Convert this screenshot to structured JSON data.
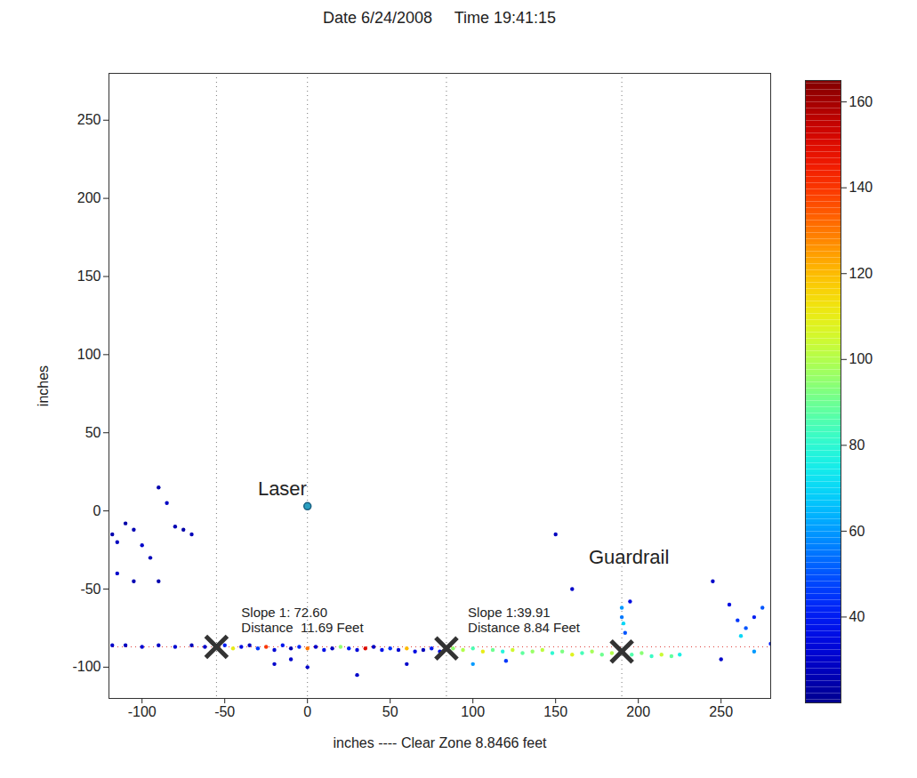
{
  "chart_data": {
    "type": "scatter",
    "title": "Date 6/24/2008     Time 19:41:15",
    "x_label": "inches ---- Clear Zone 8.8466 feet",
    "y_label": "inches",
    "xlim": [
      -120,
      280
    ],
    "ylim": [
      -120,
      280
    ],
    "xticks": [
      -100,
      -50,
      0,
      50,
      100,
      150,
      200,
      250
    ],
    "yticks": [
      -100,
      -50,
      0,
      50,
      100,
      150,
      200,
      250
    ],
    "grid": false,
    "points": {
      "x": [
        -118,
        -115,
        -110,
        -105,
        -100,
        -95,
        -90,
        -85,
        -80,
        -75,
        -70,
        -90,
        -115,
        -105,
        -118,
        -110,
        -100,
        -90,
        -80,
        -70,
        -62,
        -55,
        -50,
        -45,
        -40,
        -35,
        -30,
        -25,
        -20,
        -15,
        -10,
        -5,
        0,
        5,
        10,
        15,
        20,
        25,
        30,
        35,
        40,
        45,
        50,
        55,
        60,
        65,
        70,
        75,
        80,
        88,
        94,
        100,
        106,
        112,
        118,
        124,
        130,
        136,
        142,
        148,
        154,
        160,
        166,
        172,
        178,
        184,
        196,
        202,
        208,
        214,
        220,
        225,
        190,
        190,
        191,
        192,
        195,
        160,
        245,
        150,
        255,
        260,
        265,
        270,
        275,
        280,
        270,
        262,
        250,
        -20,
        0,
        30,
        60,
        -10,
        100,
        120
      ],
      "y": [
        -15,
        -20,
        -8,
        -12,
        -22,
        -30,
        -45,
        5,
        -10,
        -12,
        -15,
        15,
        -40,
        -45,
        -86,
        -86,
        -87,
        -86,
        -87,
        -86,
        -87,
        -87,
        -86,
        -88,
        -87,
        -86,
        -88,
        -87,
        -89,
        -86,
        -88,
        -87,
        -88,
        -87,
        -89,
        -88,
        -87,
        -88,
        -89,
        -88,
        -87,
        -89,
        -88,
        -89,
        -88,
        -90,
        -89,
        -88,
        -90,
        -88,
        -89,
        -88,
        -90,
        -89,
        -90,
        -89,
        -91,
        -90,
        -89,
        -91,
        -90,
        -92,
        -91,
        -90,
        -92,
        -91,
        -92,
        -91,
        -93,
        -92,
        -93,
        -92,
        -62,
        -68,
        -72,
        -78,
        -58,
        -50,
        -45,
        -15,
        -60,
        -70,
        -75,
        -68,
        -62,
        -85,
        -90,
        -80,
        -95,
        -98,
        -100,
        -105,
        -98,
        -95,
        -98,
        -96
      ],
      "values": [
        25,
        28,
        24,
        26,
        30,
        27,
        25,
        29,
        26,
        24,
        27,
        25,
        30,
        26,
        30,
        28,
        32,
        29,
        31,
        27,
        30,
        30,
        40,
        110,
        35,
        28,
        45,
        140,
        32,
        38,
        26,
        42,
        130,
        30,
        36,
        28,
        95,
        40,
        33,
        150,
        29,
        37,
        44,
        31,
        120,
        35,
        27,
        39,
        34,
        95,
        100,
        85,
        110,
        90,
        78,
        105,
        88,
        96,
        102,
        80,
        92,
        108,
        84,
        98,
        90,
        100,
        86,
        94,
        82,
        104,
        88,
        76,
        60,
        55,
        70,
        50,
        35,
        30,
        30,
        28,
        35,
        45,
        50,
        40,
        50,
        40,
        60,
        70,
        30,
        30,
        30,
        30,
        30,
        30,
        60,
        45
      ]
    },
    "laser": {
      "x": 0,
      "y": 3
    },
    "breakpoints": {
      "x": [
        -55,
        84,
        190
      ],
      "y": [
        -87,
        -88,
        -90
      ]
    },
    "vlines": [
      -55,
      0,
      84,
      190
    ],
    "hline": -87,
    "annotations": [
      {
        "text": "Laser",
        "x": -30,
        "y": 14
      },
      {
        "text": "Guardrail",
        "x": 170,
        "y": -30
      },
      {
        "text": "Slope 1: 72.60",
        "x": -40,
        "y": -65
      },
      {
        "text": "Distance  11.69 Feet",
        "x": -40,
        "y": -75
      },
      {
        "text": "Slope 1:39.91",
        "x": 97,
        "y": -65
      },
      {
        "text": "Distance 8.84 Feet",
        "x": 97,
        "y": -75
      }
    ],
    "colorbar": {
      "range": [
        20,
        165
      ],
      "ticks": [
        40,
        60,
        80,
        100,
        120,
        140,
        160
      ]
    }
  }
}
